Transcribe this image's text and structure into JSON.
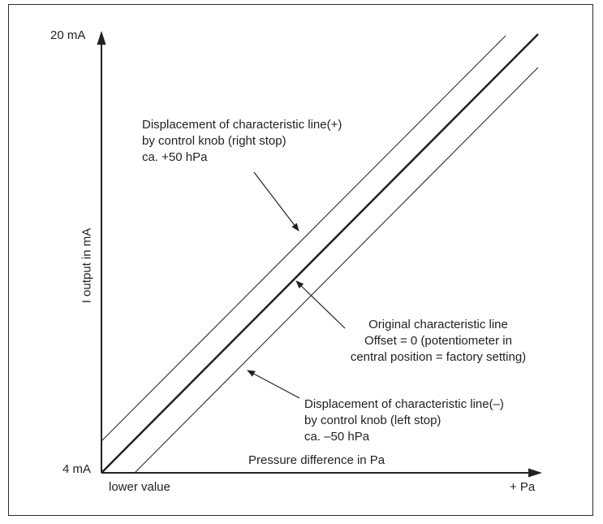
{
  "diagram": {
    "y_axis": {
      "label": "I output in mA",
      "top_tick": "20 mA",
      "bottom_tick": "4 mA"
    },
    "x_axis": {
      "label": "Pressure difference in Pa",
      "start_label": "lower value",
      "end_label": "+ Pa"
    },
    "annotations": {
      "plus": {
        "line1": "Displacement of characteristic line(+)",
        "line2": "by control knob (right stop)",
        "line3": "ca. +50 hPa"
      },
      "original": {
        "line1": "Original characteristic line",
        "line2": "Offset = 0 (potentiometer in",
        "line3": "central position = factory setting)"
      },
      "minus": {
        "line1": "Displacement of characteristic line(–)",
        "line2": "by control knob (left stop)",
        "line3": "ca. –50 hPa"
      }
    },
    "colors": {
      "ink": "#222222",
      "background": "#ffffff"
    }
  }
}
